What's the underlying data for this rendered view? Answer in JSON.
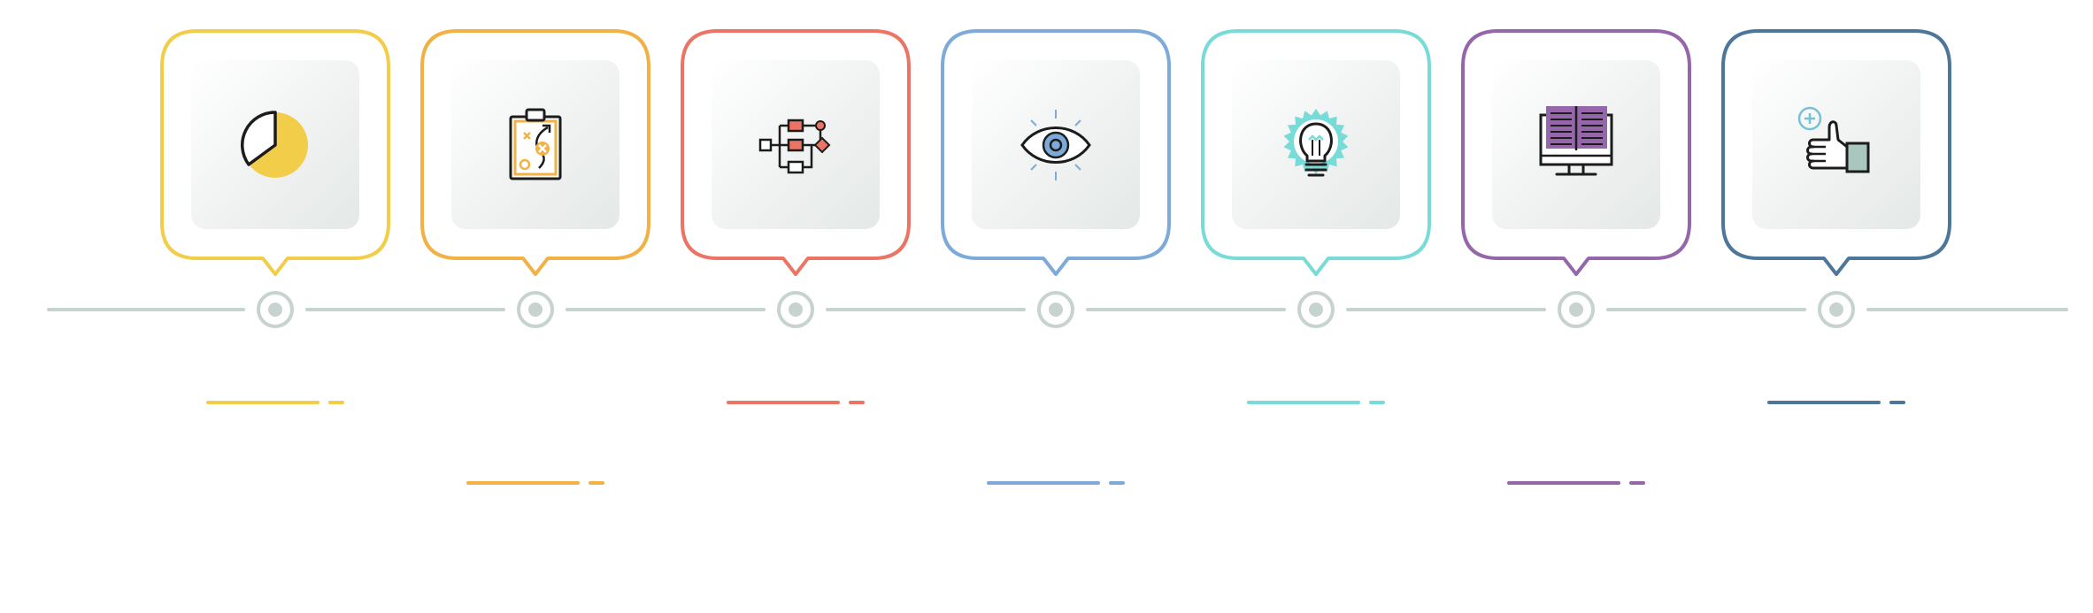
{
  "timeline": {
    "line_color": "#c7d3d0",
    "steps": [
      {
        "color": "#f2cd49",
        "icon": "pie-chart-icon",
        "row": "upper"
      },
      {
        "color": "#f2b144",
        "icon": "clipboard-strategy-icon",
        "row": "lower"
      },
      {
        "color": "#ec7465",
        "icon": "flowchart-icon",
        "row": "upper",
        "accent": "#79dbd7"
      },
      {
        "color": "#7eaad9",
        "icon": "eye-icon",
        "row": "lower"
      },
      {
        "color": "#79dbd7",
        "icon": "lightbulb-icon",
        "row": "upper"
      },
      {
        "color": "#9566aa",
        "icon": "monitor-book-icon",
        "row": "lower"
      },
      {
        "color": "#4d7698",
        "icon": "thumbs-up-icon",
        "row": "upper"
      }
    ]
  }
}
